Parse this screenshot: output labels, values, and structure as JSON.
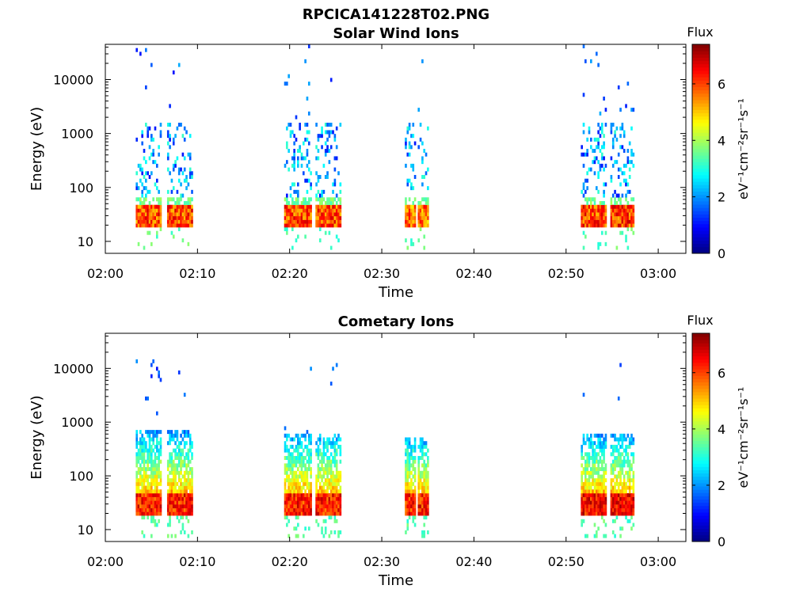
{
  "figure": {
    "filename": "RPCICA141228T02.PNG",
    "colormap": "jet"
  },
  "chart_data": [
    {
      "type": "heatmap",
      "title": "Solar Wind Ions",
      "xlabel": "Time",
      "ylabel": "Energy (eV)",
      "x_ticks": [
        "02:00",
        "02:10",
        "02:20",
        "02:30",
        "02:40",
        "02:50",
        "03:00"
      ],
      "y_ticks": [
        "10",
        "100",
        "1000",
        "10000"
      ],
      "y_scale": "log",
      "x_range_minutes": [
        0,
        63
      ],
      "y_range_eV": [
        6,
        45000
      ],
      "colorbar": {
        "label": "Flux",
        "units": "eV⁻¹cm⁻²sr⁻¹s⁻¹",
        "ticks": [
          0,
          2,
          4,
          6
        ],
        "range": [
          0,
          7.4
        ]
      },
      "observation_intervals_minutes": [
        [
          3.3,
          9.5
        ],
        [
          19.3,
          25.8
        ],
        [
          32.2,
          35.2
        ],
        [
          51.3,
          57.6
        ]
      ],
      "features": [
        {
          "x_minutes": [
            3.3,
            9.3
          ],
          "energy_eV": [
            18,
            45
          ],
          "flux_peak": 6.8
        },
        {
          "x_minutes": [
            19.4,
            25.5
          ],
          "energy_eV": [
            18,
            45
          ],
          "flux_peak": 6.8
        },
        {
          "x_minutes": [
            32.5,
            35.0
          ],
          "energy_eV": [
            18,
            45
          ],
          "flux_peak": 6.5
        },
        {
          "x_minutes": [
            51.6,
            57.4
          ],
          "energy_eV": [
            18,
            45
          ],
          "flux_peak": 6.9
        }
      ]
    },
    {
      "type": "heatmap",
      "title": "Cometary Ions",
      "xlabel": "Time",
      "ylabel": "Energy (eV)",
      "x_ticks": [
        "02:00",
        "02:10",
        "02:20",
        "02:30",
        "02:40",
        "02:50",
        "03:00"
      ],
      "y_ticks": [
        "10",
        "100",
        "1000",
        "10000"
      ],
      "y_scale": "log",
      "x_range_minutes": [
        0,
        63
      ],
      "y_range_eV": [
        6,
        45000
      ],
      "colorbar": {
        "label": "Flux",
        "units": "eV⁻¹cm⁻²sr⁻¹s⁻¹",
        "ticks": [
          0,
          2,
          4,
          6
        ],
        "range": [
          0,
          7.4
        ]
      },
      "observation_intervals_minutes": [
        [
          3.3,
          9.5
        ],
        [
          19.3,
          25.8
        ],
        [
          32.2,
          35.2
        ],
        [
          51.3,
          57.6
        ]
      ],
      "features": [
        {
          "x_minutes": [
            3.3,
            9.3
          ],
          "energy_eV": [
            18,
            700
          ],
          "flux_peak": 7.0
        },
        {
          "x_minutes": [
            19.4,
            25.5
          ],
          "energy_eV": [
            18,
            650
          ],
          "flux_peak": 7.0
        },
        {
          "x_minutes": [
            32.5,
            35.0
          ],
          "energy_eV": [
            18,
            550
          ],
          "flux_peak": 7.0
        },
        {
          "x_minutes": [
            51.6,
            57.4
          ],
          "energy_eV": [
            18,
            600
          ],
          "flux_peak": 7.2
        }
      ]
    }
  ]
}
